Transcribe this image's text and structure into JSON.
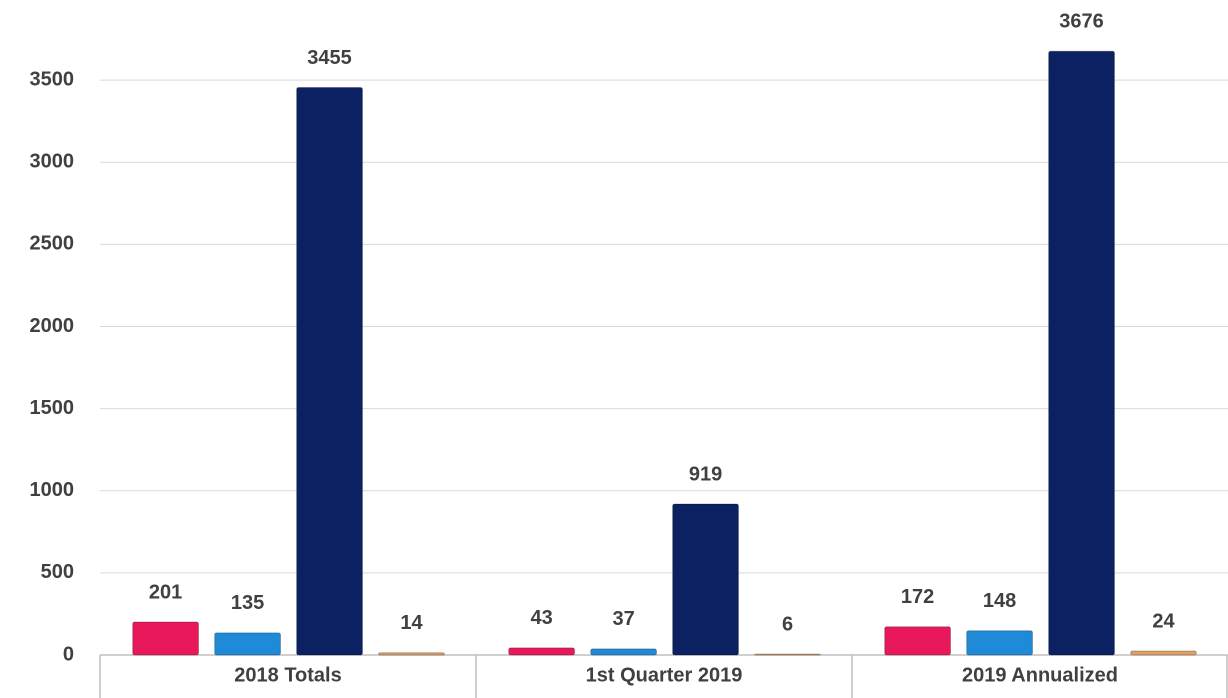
{
  "chart_data": {
    "type": "bar",
    "categories": [
      "2018 Totals",
      "1st Quarter 2019",
      "2019 Annualized"
    ],
    "series": [
      {
        "color": "#e8185a",
        "values": [
          201,
          43,
          172
        ]
      },
      {
        "color": "#1f8ad8",
        "values": [
          135,
          37,
          148
        ]
      },
      {
        "color": "#0b2161",
        "values": [
          3455,
          919,
          3676
        ]
      },
      {
        "color": "#e0a060",
        "values": [
          14,
          6,
          24
        ]
      }
    ],
    "ylim": [
      0,
      4000
    ],
    "yticks": [
      0,
      500,
      1000,
      1500,
      2000,
      2500,
      3000,
      3500
    ],
    "grid": true
  }
}
